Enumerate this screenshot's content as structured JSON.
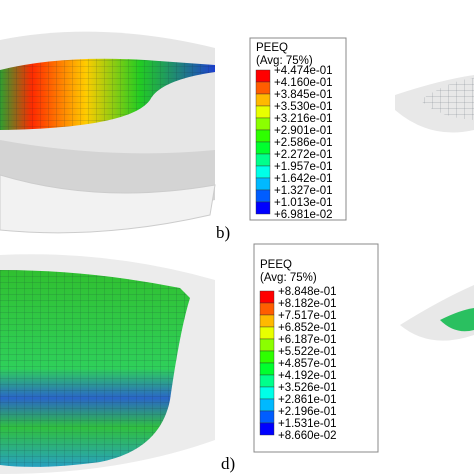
{
  "panels": [
    {
      "label": "b)",
      "legend": {
        "title": "PEEQ",
        "subtitle": "(Avg: 75%)",
        "values": [
          "+4.474e-01",
          "+4.160e-01",
          "+3.845e-01",
          "+3.530e-01",
          "+3.216e-01",
          "+2.901e-01",
          "+2.586e-01",
          "+2.272e-01",
          "+1.957e-01",
          "+1.642e-01",
          "+1.327e-01",
          "+1.013e-01",
          "+6.981e-02"
        ]
      }
    },
    {
      "label": "d)",
      "legend": {
        "title": "PEEQ",
        "subtitle": "(Avg: 75%)",
        "values": [
          "+8.848e-01",
          "+8.182e-01",
          "+7.517e-01",
          "+6.852e-01",
          "+6.187e-01",
          "+5.522e-01",
          "+4.857e-01",
          "+4.192e-01",
          "+3.526e-01",
          "+2.861e-01",
          "+2.196e-01",
          "+1.531e-01",
          "+8.660e-02"
        ]
      }
    }
  ]
}
